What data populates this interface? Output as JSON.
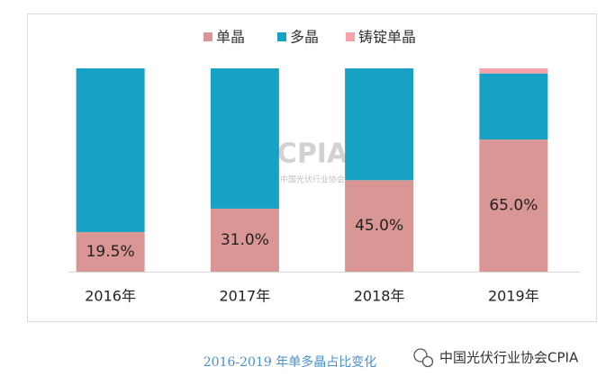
{
  "chart_data": {
    "type": "stacked_bar",
    "categories": [
      "2016年",
      "2017年",
      "2018年",
      "2019年"
    ],
    "series": [
      {
        "name": "单晶",
        "color": "#d99694",
        "values": [
          19.5,
          31.0,
          45.0,
          65.0
        ],
        "value_labels": [
          "19.5%",
          "31.0%",
          "45.0%",
          "65.0%"
        ]
      },
      {
        "name": "多晶",
        "color": "#17a1c4",
        "values": [
          80.5,
          69.0,
          55.0,
          32.5
        ]
      },
      {
        "name": "铸锭单晶",
        "color": "#f7a1a9",
        "values": [
          0,
          0,
          0,
          2.5
        ]
      }
    ],
    "ylim": [
      0,
      100
    ],
    "legend": "top",
    "watermark": {
      "logo": "CPIA",
      "text": "中国光伏行业协会"
    }
  },
  "caption": "2016-2019 年单多晶占比变化",
  "source": "中国光伏行业协会CPIA"
}
